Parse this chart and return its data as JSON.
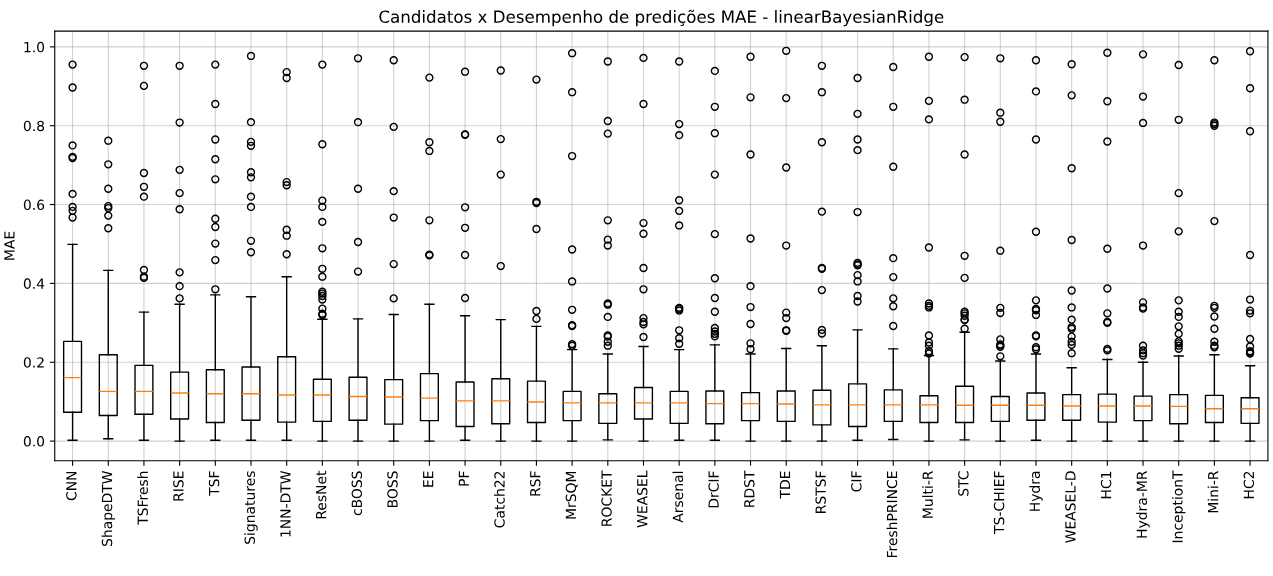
{
  "chart_data": {
    "type": "box",
    "title": "Candidatos x Desempenho de predições MAE - linearBayesianRidge",
    "ylabel": "MAE",
    "categories": [
      "CNN",
      "ShapeDTW",
      "TSFresh",
      "RISE",
      "TSF",
      "Signatures",
      "1NN-DTW",
      "ResNet",
      "cBOSS",
      "BOSS",
      "EE",
      "PF",
      "Catch22",
      "RSF",
      "MrSQM",
      "ROCKET",
      "WEASEL",
      "Arsenal",
      "DrCIF",
      "RDST",
      "TDE",
      "RSTSF",
      "CIF",
      "FreshPRINCE",
      "Multi-R",
      "STC",
      "TS-CHIEF",
      "Hydra",
      "WEASEL-D",
      "HC1",
      "Hydra-MR",
      "InceptionT",
      "Mini-R",
      "HC2"
    ],
    "boxes": [
      {
        "low": 0.002,
        "q1": 0.073,
        "median": 0.161,
        "q3": 0.253,
        "high": 0.499,
        "outliers": [
          0.955,
          0.897,
          0.75,
          0.721,
          0.718,
          0.627,
          0.594,
          0.584,
          0.567
        ]
      },
      {
        "low": 0.006,
        "q1": 0.065,
        "median": 0.126,
        "q3": 0.219,
        "high": 0.433,
        "outliers": [
          0.762,
          0.702,
          0.64,
          0.596,
          0.591,
          0.572,
          0.54
        ]
      },
      {
        "low": 0.002,
        "q1": 0.068,
        "median": 0.126,
        "q3": 0.192,
        "high": 0.327,
        "outliers": [
          0.952,
          0.901,
          0.68,
          0.645,
          0.62,
          0.434,
          0.417,
          0.414
        ]
      },
      {
        "low": 0.0,
        "q1": 0.056,
        "median": 0.122,
        "q3": 0.175,
        "high": 0.347,
        "outliers": [
          0.952,
          0.808,
          0.688,
          0.629,
          0.588,
          0.428,
          0.393,
          0.362
        ]
      },
      {
        "low": 0.002,
        "q1": 0.047,
        "median": 0.12,
        "q3": 0.181,
        "high": 0.371,
        "outliers": [
          0.955,
          0.855,
          0.765,
          0.715,
          0.664,
          0.564,
          0.543,
          0.501,
          0.459,
          0.385
        ]
      },
      {
        "low": 0.002,
        "q1": 0.053,
        "median": 0.12,
        "q3": 0.188,
        "high": 0.366,
        "outliers": [
          0.977,
          0.809,
          0.759,
          0.749,
          0.682,
          0.669,
          0.62,
          0.594,
          0.508,
          0.479
        ]
      },
      {
        "low": 0.002,
        "q1": 0.048,
        "median": 0.117,
        "q3": 0.214,
        "high": 0.417,
        "outliers": [
          0.936,
          0.921,
          0.657,
          0.649,
          0.536,
          0.521,
          0.474
        ]
      },
      {
        "low": 0.0,
        "q1": 0.05,
        "median": 0.117,
        "q3": 0.157,
        "high": 0.309,
        "outliers": [
          0.955,
          0.753,
          0.61,
          0.594,
          0.556,
          0.489,
          0.437,
          0.417,
          0.379,
          0.374,
          0.368,
          0.359,
          0.336,
          0.323,
          0.32
        ]
      },
      {
        "low": 0.0,
        "q1": 0.053,
        "median": 0.113,
        "q3": 0.162,
        "high": 0.31,
        "outliers": [
          0.971,
          0.809,
          0.64,
          0.505,
          0.43
        ]
      },
      {
        "low": 0.0,
        "q1": 0.043,
        "median": 0.112,
        "q3": 0.156,
        "high": 0.321,
        "outliers": [
          0.966,
          0.797,
          0.634,
          0.567,
          0.449,
          0.362
        ]
      },
      {
        "low": 0.0,
        "q1": 0.052,
        "median": 0.109,
        "q3": 0.171,
        "high": 0.347,
        "outliers": [
          0.922,
          0.758,
          0.736,
          0.56,
          0.473,
          0.471
        ]
      },
      {
        "low": 0.002,
        "q1": 0.037,
        "median": 0.102,
        "q3": 0.15,
        "high": 0.318,
        "outliers": [
          0.937,
          0.778,
          0.777,
          0.593,
          0.541,
          0.472,
          0.363
        ]
      },
      {
        "low": 0.0,
        "q1": 0.044,
        "median": 0.102,
        "q3": 0.158,
        "high": 0.308,
        "outliers": [
          0.94,
          0.766,
          0.676,
          0.444
        ]
      },
      {
        "low": 0.0,
        "q1": 0.047,
        "median": 0.099,
        "q3": 0.152,
        "high": 0.291,
        "outliers": [
          0.917,
          0.607,
          0.604,
          0.538,
          0.33,
          0.31
        ]
      },
      {
        "low": 0.0,
        "q1": 0.052,
        "median": 0.097,
        "q3": 0.126,
        "high": 0.232,
        "outliers": [
          0.984,
          0.885,
          0.723,
          0.486,
          0.405,
          0.333,
          0.294,
          0.292,
          0.246,
          0.242
        ]
      },
      {
        "low": 0.003,
        "q1": 0.045,
        "median": 0.097,
        "q3": 0.12,
        "high": 0.221,
        "outliers": [
          0.963,
          0.812,
          0.78,
          0.56,
          0.511,
          0.496,
          0.349,
          0.346,
          0.315,
          0.268,
          0.265,
          0.252,
          0.242
        ]
      },
      {
        "low": 0.0,
        "q1": 0.056,
        "median": 0.097,
        "q3": 0.136,
        "high": 0.24,
        "outliers": [
          0.972,
          0.855,
          0.553,
          0.526,
          0.439,
          0.385,
          0.312,
          0.302,
          0.296,
          0.264
        ]
      },
      {
        "low": 0.002,
        "q1": 0.045,
        "median": 0.097,
        "q3": 0.126,
        "high": 0.232,
        "outliers": [
          0.963,
          0.804,
          0.776,
          0.611,
          0.584,
          0.547,
          0.338,
          0.335,
          0.331,
          0.281,
          0.261,
          0.247
        ]
      },
      {
        "low": 0.002,
        "q1": 0.044,
        "median": 0.095,
        "q3": 0.127,
        "high": 0.244,
        "outliers": [
          0.939,
          0.848,
          0.781,
          0.676,
          0.525,
          0.413,
          0.363,
          0.328,
          0.287,
          0.278,
          0.272,
          0.266
        ]
      },
      {
        "low": 0.0,
        "q1": 0.052,
        "median": 0.095,
        "q3": 0.123,
        "high": 0.221,
        "outliers": [
          0.975,
          0.872,
          0.727,
          0.514,
          0.393,
          0.34,
          0.297,
          0.248,
          0.233
        ]
      },
      {
        "low": 0.0,
        "q1": 0.05,
        "median": 0.094,
        "q3": 0.127,
        "high": 0.235,
        "outliers": [
          0.99,
          0.87,
          0.694,
          0.496,
          0.326,
          0.312,
          0.281,
          0.28
        ]
      },
      {
        "low": 0.0,
        "q1": 0.041,
        "median": 0.092,
        "q3": 0.129,
        "high": 0.242,
        "outliers": [
          0.952,
          0.885,
          0.758,
          0.582,
          0.439,
          0.437,
          0.383,
          0.282,
          0.273
        ]
      },
      {
        "low": 0.002,
        "q1": 0.037,
        "median": 0.092,
        "q3": 0.145,
        "high": 0.282,
        "outliers": [
          0.921,
          0.83,
          0.765,
          0.738,
          0.581,
          0.452,
          0.448,
          0.446,
          0.421,
          0.405,
          0.368,
          0.354
        ]
      },
      {
        "low": 0.004,
        "q1": 0.05,
        "median": 0.092,
        "q3": 0.13,
        "high": 0.234,
        "outliers": [
          0.949,
          0.848,
          0.696,
          0.464,
          0.416,
          0.362,
          0.342,
          0.292
        ]
      },
      {
        "low": 0.0,
        "q1": 0.047,
        "median": 0.092,
        "q3": 0.115,
        "high": 0.217,
        "outliers": [
          0.975,
          0.863,
          0.816,
          0.491,
          0.349,
          0.343,
          0.339,
          0.268,
          0.25,
          0.242,
          0.228,
          0.222
        ]
      },
      {
        "low": 0.003,
        "q1": 0.047,
        "median": 0.091,
        "q3": 0.139,
        "high": 0.276,
        "outliers": [
          0.974,
          0.866,
          0.727,
          0.47,
          0.414,
          0.328,
          0.324,
          0.318,
          0.308,
          0.307,
          0.285
        ]
      },
      {
        "low": 0.0,
        "q1": 0.05,
        "median": 0.091,
        "q3": 0.113,
        "high": 0.203,
        "outliers": [
          0.971,
          0.833,
          0.81,
          0.483,
          0.338,
          0.325,
          0.258,
          0.245,
          0.242,
          0.239,
          0.215
        ]
      },
      {
        "low": 0.002,
        "q1": 0.053,
        "median": 0.091,
        "q3": 0.122,
        "high": 0.221,
        "outliers": [
          0.966,
          0.887,
          0.765,
          0.531,
          0.357,
          0.335,
          0.332,
          0.32,
          0.268,
          0.266,
          0.238,
          0.233
        ]
      },
      {
        "low": 0.0,
        "q1": 0.053,
        "median": 0.089,
        "q3": 0.118,
        "high": 0.186,
        "outliers": [
          0.956,
          0.877,
          0.692,
          0.51,
          0.382,
          0.339,
          0.308,
          0.289,
          0.285,
          0.265,
          0.252,
          0.244,
          0.223
        ]
      },
      {
        "low": 0.0,
        "q1": 0.048,
        "median": 0.089,
        "q3": 0.119,
        "high": 0.207,
        "outliers": [
          0.985,
          0.862,
          0.76,
          0.488,
          0.387,
          0.324,
          0.302,
          0.3,
          0.234,
          0.23
        ]
      },
      {
        "low": 0.0,
        "q1": 0.052,
        "median": 0.089,
        "q3": 0.114,
        "high": 0.2,
        "outliers": [
          0.981,
          0.874,
          0.807,
          0.496,
          0.352,
          0.339,
          0.336,
          0.242,
          0.23,
          0.223,
          0.217
        ]
      },
      {
        "low": 0.0,
        "q1": 0.044,
        "median": 0.088,
        "q3": 0.118,
        "high": 0.216,
        "outliers": [
          0.954,
          0.815,
          0.629,
          0.532,
          0.357,
          0.328,
          0.315,
          0.291,
          0.272,
          0.253,
          0.248,
          0.242,
          0.234
        ]
      },
      {
        "low": 0.0,
        "q1": 0.047,
        "median": 0.082,
        "q3": 0.116,
        "high": 0.219,
        "outliers": [
          0.966,
          0.808,
          0.804,
          0.8,
          0.558,
          0.343,
          0.338,
          0.316,
          0.285,
          0.252,
          0.242,
          0.238
        ]
      },
      {
        "low": 0.0,
        "q1": 0.045,
        "median": 0.082,
        "q3": 0.11,
        "high": 0.191,
        "outliers": [
          0.989,
          0.895,
          0.786,
          0.472,
          0.359,
          0.331,
          0.324,
          0.259,
          0.24,
          0.228,
          0.225,
          0.222
        ]
      }
    ],
    "ylim": [
      -0.05,
      1.04
    ],
    "yticks": [
      {
        "value": 0,
        "label": "0.0"
      },
      {
        "value": 0.2,
        "label": "0.2"
      },
      {
        "value": 0.4,
        "label": "0.4"
      },
      {
        "value": 0.6,
        "label": "0.6"
      },
      {
        "value": 0.8,
        "label": "0.8"
      },
      {
        "value": 1,
        "label": "1.0"
      }
    ],
    "grid": true,
    "marker": "circle"
  }
}
